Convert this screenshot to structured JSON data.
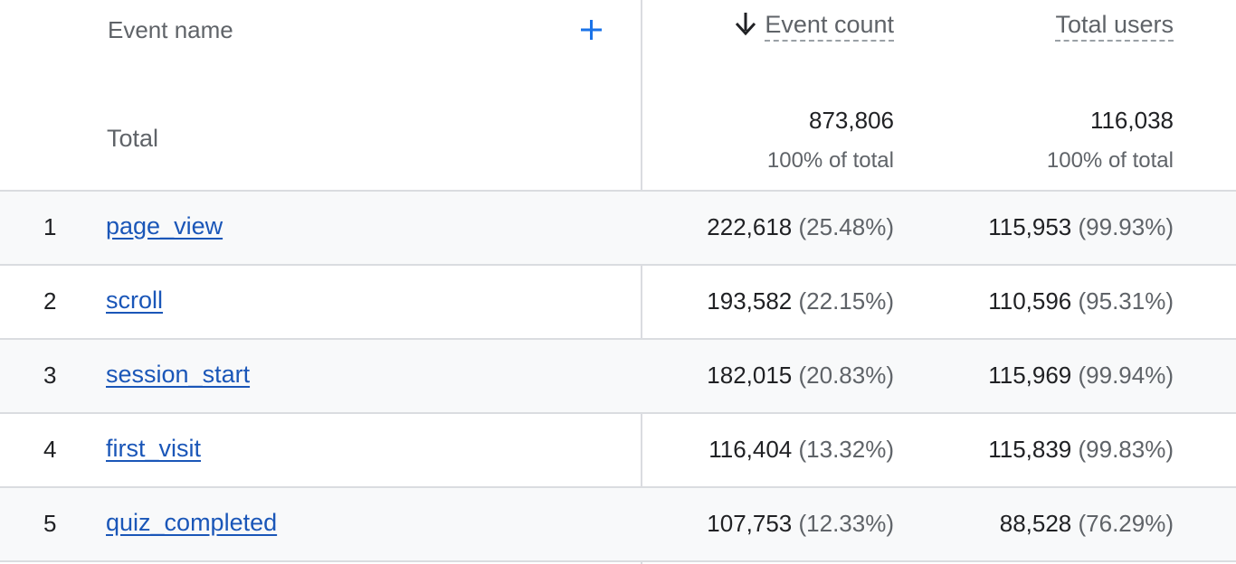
{
  "header": {
    "event_name": "Event name",
    "event_count": "Event count",
    "total_users": "Total users"
  },
  "totals": {
    "label": "Total",
    "event_count": "873,806",
    "event_count_pct": "100% of total",
    "total_users": "116,038",
    "total_users_pct": "100% of total"
  },
  "rows": [
    {
      "index": "1",
      "name": "page_view",
      "event_count": "222,618",
      "event_count_pct": "(25.48%)",
      "total_users": "115,953",
      "total_users_pct": "(99.93%)"
    },
    {
      "index": "2",
      "name": "scroll",
      "event_count": "193,582",
      "event_count_pct": "(22.15%)",
      "total_users": "110,596",
      "total_users_pct": "(95.31%)"
    },
    {
      "index": "3",
      "name": "session_start",
      "event_count": "182,015",
      "event_count_pct": "(20.83%)",
      "total_users": "115,969",
      "total_users_pct": "(99.94%)"
    },
    {
      "index": "4",
      "name": "first_visit",
      "event_count": "116,404",
      "event_count_pct": "(13.32%)",
      "total_users": "115,839",
      "total_users_pct": "(99.83%)"
    },
    {
      "index": "5",
      "name": "quiz_completed",
      "event_count": "107,753",
      "event_count_pct": "(12.33%)",
      "total_users": "88,528",
      "total_users_pct": "(76.29%)"
    }
  ],
  "colors": {
    "link": "#1a56b8",
    "accent": "#1a73e8",
    "divider": "#dadce0",
    "alt_row": "#f8f9fa"
  },
  "icons": {
    "add": "plus-icon",
    "sort": "arrow-down-icon"
  }
}
